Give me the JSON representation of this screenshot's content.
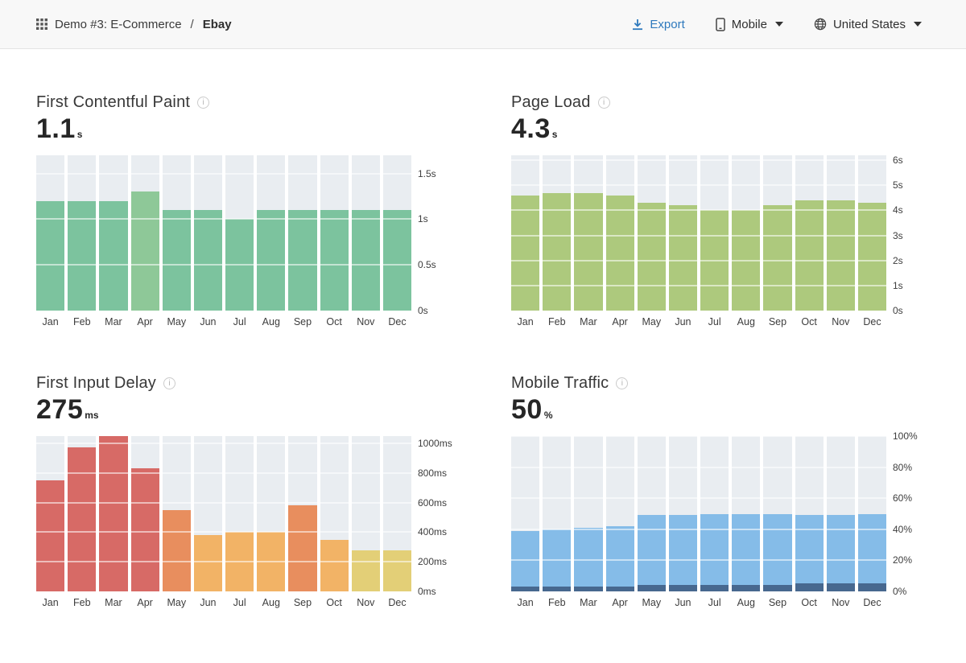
{
  "header": {
    "breadcrumb": "Demo #3: E-Commerce",
    "separator": "/",
    "page": "Ebay",
    "export_label": "Export",
    "device_label": "Mobile",
    "country_label": "United States",
    "export_color": "#2e79bd"
  },
  "colors": {
    "track": "#e9edf1",
    "header_bg": "#f8f8f8",
    "header_border": "#e4e4e4"
  },
  "months": [
    "Jan",
    "Feb",
    "Mar",
    "Apr",
    "May",
    "Jun",
    "Jul",
    "Aug",
    "Sep",
    "Oct",
    "Nov",
    "Dec"
  ],
  "chart_data": [
    {
      "id": "fcp",
      "type": "bar",
      "title": "First Contentful Paint",
      "info_icon": "info-icon",
      "value": "1.1",
      "unit": "s",
      "ymax": 1.7,
      "values": [
        1.2,
        1.2,
        1.2,
        1.3,
        1.1,
        1.1,
        1.0,
        1.1,
        1.1,
        1.1,
        1.1,
        1.1
      ],
      "bar_colors": [
        "#7cc39e",
        "#7cc39e",
        "#7cc39e",
        "#8ec898",
        "#7cc39e",
        "#7cc39e",
        "#7cc39e",
        "#7cc39e",
        "#7cc39e",
        "#7cc39e",
        "#7cc39e",
        "#7cc39e"
      ],
      "ticks": [
        {
          "v": 0,
          "label": "0s"
        },
        {
          "v": 0.5,
          "label": "0.5s"
        },
        {
          "v": 1,
          "label": "1s"
        },
        {
          "v": 1.5,
          "label": "1.5s"
        }
      ]
    },
    {
      "id": "page-load",
      "type": "bar",
      "title": "Page Load",
      "info_icon": "info-icon",
      "value": "4.3",
      "unit": "s",
      "ymax": 6.2,
      "values": [
        4.6,
        4.7,
        4.7,
        4.6,
        4.3,
        4.2,
        4.0,
        4.0,
        4.2,
        4.4,
        4.4,
        4.3
      ],
      "bar_colors": [
        "#adc97d",
        "#adc97d",
        "#adc97d",
        "#adc97d",
        "#adc97d",
        "#adc97d",
        "#adc97d",
        "#adc97d",
        "#adc97d",
        "#adc97d",
        "#adc97d",
        "#adc97d"
      ],
      "ticks": [
        {
          "v": 0,
          "label": "0s"
        },
        {
          "v": 1,
          "label": "1s"
        },
        {
          "v": 2,
          "label": "2s"
        },
        {
          "v": 3,
          "label": "3s"
        },
        {
          "v": 4,
          "label": "4s"
        },
        {
          "v": 5,
          "label": "5s"
        },
        {
          "v": 6,
          "label": "6s"
        }
      ]
    },
    {
      "id": "fid",
      "type": "bar",
      "title": "First Input Delay",
      "info_icon": "info-icon",
      "value": "275",
      "unit": "ms",
      "ymax": 1050,
      "values": [
        750,
        975,
        1050,
        830,
        550,
        380,
        400,
        400,
        580,
        350,
        280,
        280
      ],
      "bar_colors": [
        "#d76a66",
        "#d76a66",
        "#d76a66",
        "#d76a66",
        "#e88e5e",
        "#f2b366",
        "#f2b366",
        "#f2b366",
        "#e88e5e",
        "#f2b366",
        "#e3cf77",
        "#e3cf77"
      ],
      "ticks": [
        {
          "v": 0,
          "label": "0ms"
        },
        {
          "v": 200,
          "label": "200ms"
        },
        {
          "v": 400,
          "label": "400ms"
        },
        {
          "v": 600,
          "label": "600ms"
        },
        {
          "v": 800,
          "label": "800ms"
        },
        {
          "v": 1000,
          "label": "1000ms"
        }
      ]
    },
    {
      "id": "mobile-traffic",
      "type": "stacked-bar",
      "title": "Mobile Traffic",
      "info_icon": "info-icon",
      "value": "50",
      "unit": "%",
      "ymax": 100,
      "totals": [
        39,
        40,
        41,
        42,
        49,
        49,
        50,
        50,
        50,
        49,
        49,
        50
      ],
      "bottom_values": [
        3,
        3,
        3,
        3,
        4,
        4,
        4,
        4,
        4,
        5,
        5,
        5
      ],
      "bottom_color": "#47688f",
      "top_color": "#85bce8",
      "ticks": [
        {
          "v": 0,
          "label": "0%"
        },
        {
          "v": 20,
          "label": "20%"
        },
        {
          "v": 40,
          "label": "40%"
        },
        {
          "v": 60,
          "label": "60%"
        },
        {
          "v": 80,
          "label": "80%"
        },
        {
          "v": 100,
          "label": "100%"
        }
      ]
    }
  ]
}
